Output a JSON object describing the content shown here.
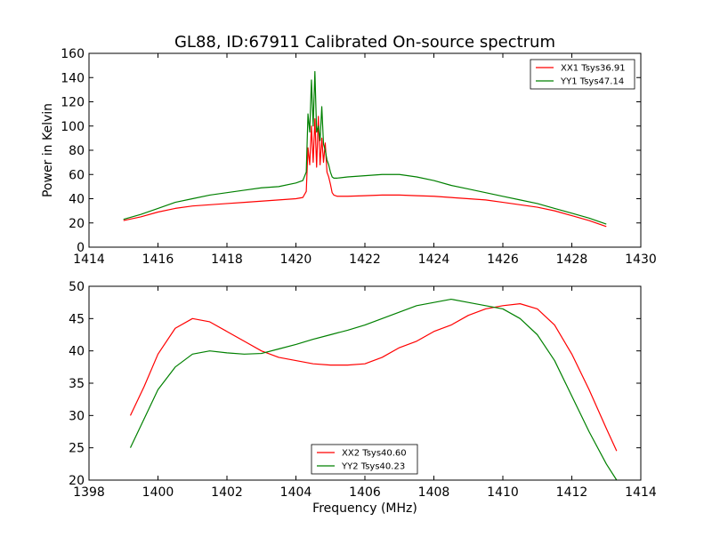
{
  "title": "GL88, ID:67911 Calibrated On-source spectrum",
  "chart_data": [
    {
      "type": "line",
      "title": "GL88, ID:67911 Calibrated On-source spectrum",
      "xlabel": "",
      "ylabel": "Power in Kelvin",
      "xlim": [
        1414,
        1430
      ],
      "ylim": [
        0,
        160
      ],
      "xticks": [
        1414,
        1416,
        1418,
        1420,
        1422,
        1424,
        1426,
        1428,
        1430
      ],
      "yticks": [
        0,
        20,
        40,
        60,
        80,
        100,
        120,
        140,
        160
      ],
      "grid": false,
      "legend": "top-right",
      "series": [
        {
          "name": "XX1 Tsys36.91",
          "color": "#ff0000",
          "x": [
            1415.0,
            1415.5,
            1416.0,
            1416.5,
            1417.0,
            1417.5,
            1418.0,
            1418.5,
            1419.0,
            1419.5,
            1420.0,
            1420.2,
            1420.3,
            1420.35,
            1420.4,
            1420.45,
            1420.5,
            1420.55,
            1420.6,
            1420.65,
            1420.7,
            1420.75,
            1420.8,
            1420.85,
            1420.9,
            1420.95,
            1421.0,
            1421.05,
            1421.1,
            1421.2,
            1421.5,
            1422.0,
            1422.5,
            1423.0,
            1423.5,
            1424.0,
            1424.5,
            1425.0,
            1425.5,
            1426.0,
            1426.5,
            1427.0,
            1427.5,
            1428.0,
            1428.5,
            1429.0
          ],
          "y": [
            22,
            25,
            29,
            32,
            34,
            35,
            36,
            37,
            38,
            39,
            40,
            41,
            46,
            82,
            68,
            100,
            70,
            106,
            66,
            108,
            68,
            90,
            70,
            86,
            62,
            58,
            52,
            45,
            43,
            42,
            42,
            42.5,
            43,
            43,
            42.5,
            42,
            41,
            40,
            39,
            37,
            35,
            33,
            30,
            26,
            22,
            17
          ]
        },
        {
          "name": "YY1 Tsys47.14",
          "color": "#008000",
          "x": [
            1415.0,
            1415.5,
            1416.0,
            1416.5,
            1417.0,
            1417.5,
            1418.0,
            1418.5,
            1419.0,
            1419.5,
            1420.0,
            1420.2,
            1420.3,
            1420.35,
            1420.4,
            1420.45,
            1420.5,
            1420.55,
            1420.6,
            1420.65,
            1420.7,
            1420.75,
            1420.8,
            1420.85,
            1420.9,
            1420.95,
            1421.0,
            1421.05,
            1421.1,
            1421.2,
            1421.5,
            1422.0,
            1422.5,
            1423.0,
            1423.5,
            1424.0,
            1424.5,
            1425.0,
            1425.5,
            1426.0,
            1426.5,
            1427.0,
            1427.5,
            1428.0,
            1428.5,
            1429.0
          ],
          "y": [
            23,
            27,
            32,
            37,
            40,
            43,
            45,
            47,
            49,
            50,
            53,
            55,
            62,
            110,
            95,
            138,
            100,
            145,
            95,
            100,
            88,
            116,
            85,
            80,
            72,
            68,
            62,
            58,
            57,
            57,
            58,
            59,
            60,
            60,
            58,
            55,
            51,
            48,
            45,
            42,
            39,
            36,
            32,
            28,
            24,
            19
          ]
        }
      ]
    },
    {
      "type": "line",
      "title": "",
      "xlabel": "Frequency (MHz)",
      "ylabel": "",
      "xlim": [
        1398,
        1414
      ],
      "ylim": [
        20,
        50
      ],
      "xticks": [
        1398,
        1400,
        1402,
        1404,
        1406,
        1408,
        1410,
        1412,
        1414
      ],
      "yticks": [
        20,
        25,
        30,
        35,
        40,
        45,
        50
      ],
      "grid": false,
      "legend": "bottom-center",
      "series": [
        {
          "name": "XX2 Tsys40.60",
          "color": "#ff0000",
          "x": [
            1399.2,
            1399.6,
            1400.0,
            1400.5,
            1401.0,
            1401.5,
            1402.0,
            1402.5,
            1403.0,
            1403.5,
            1404.0,
            1404.5,
            1405.0,
            1405.5,
            1406.0,
            1406.5,
            1407.0,
            1407.5,
            1408.0,
            1408.5,
            1409.0,
            1409.5,
            1410.0,
            1410.5,
            1411.0,
            1411.5,
            1412.0,
            1412.5,
            1413.0,
            1413.3
          ],
          "y": [
            30,
            34.5,
            39.5,
            43.5,
            45,
            44.5,
            43,
            41.5,
            40,
            39,
            38.5,
            38,
            37.8,
            37.8,
            38,
            39,
            40.5,
            41.5,
            43,
            44,
            45.5,
            46.5,
            47,
            47.3,
            46.5,
            44,
            39.5,
            34,
            28,
            24.5
          ]
        },
        {
          "name": "YY2 Tsys40.23",
          "color": "#008000",
          "x": [
            1399.2,
            1399.6,
            1400.0,
            1400.5,
            1401.0,
            1401.5,
            1402.0,
            1402.5,
            1403.0,
            1403.5,
            1404.0,
            1404.5,
            1405.0,
            1405.5,
            1406.0,
            1406.5,
            1407.0,
            1407.5,
            1408.0,
            1408.5,
            1409.0,
            1409.5,
            1410.0,
            1410.5,
            1411.0,
            1411.5,
            1412.0,
            1412.5,
            1413.0,
            1413.3
          ],
          "y": [
            25,
            29.5,
            34,
            37.5,
            39.5,
            40,
            39.7,
            39.5,
            39.6,
            40.3,
            41,
            41.8,
            42.5,
            43.2,
            44,
            45,
            46,
            47,
            47.5,
            48,
            47.5,
            47,
            46.5,
            45,
            42.5,
            38.5,
            33,
            27.5,
            22.5,
            20
          ]
        }
      ]
    }
  ]
}
